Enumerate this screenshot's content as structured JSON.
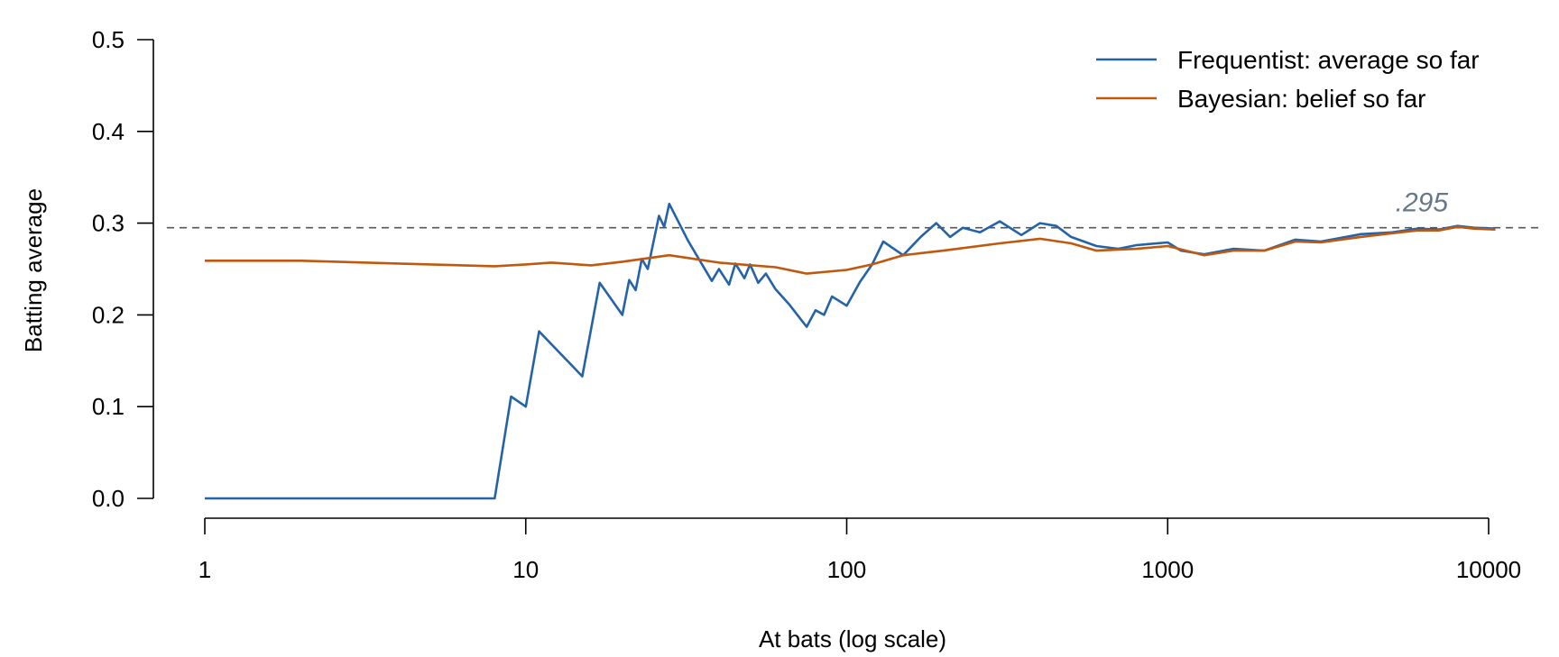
{
  "chart_data": {
    "type": "line",
    "xlabel": "At bats (log scale)",
    "ylabel": "Batting average",
    "xscale": "log",
    "xlim": [
      1,
      10000
    ],
    "ylim": [
      0,
      0.5
    ],
    "x_ticks": [
      1,
      10,
      100,
      1000,
      10000
    ],
    "x_tick_labels": [
      "1",
      "10",
      "100",
      "1000",
      "10000"
    ],
    "y_ticks": [
      0,
      0.1,
      0.2,
      0.3,
      0.4,
      0.5
    ],
    "y_tick_labels": [
      "0.0",
      "0.1",
      "0.2",
      "0.3",
      "0.4",
      "0.5"
    ],
    "grid": false,
    "legend_position": "top-right",
    "reference_line": {
      "y": 0.295,
      "label": ".295",
      "style": "dashed"
    },
    "series": [
      {
        "name": "Frequentist: average so far",
        "color": "#2563a8",
        "points": [
          [
            1,
            0
          ],
          [
            8,
            0
          ],
          [
            9,
            0.111
          ],
          [
            10,
            0.1
          ],
          [
            11,
            0.182
          ],
          [
            15,
            0.133
          ],
          [
            17,
            0.235
          ],
          [
            20,
            0.2
          ],
          [
            21,
            0.238
          ],
          [
            22,
            0.227
          ],
          [
            23,
            0.261
          ],
          [
            24,
            0.25
          ],
          [
            26,
            0.308
          ],
          [
            27,
            0.296
          ],
          [
            28,
            0.321
          ],
          [
            32,
            0.281
          ],
          [
            38,
            0.237
          ],
          [
            40,
            0.25
          ],
          [
            43,
            0.233
          ],
          [
            45,
            0.256
          ],
          [
            48,
            0.24
          ],
          [
            50,
            0.255
          ],
          [
            53,
            0.235
          ],
          [
            56,
            0.245
          ],
          [
            60,
            0.228
          ],
          [
            66,
            0.212
          ],
          [
            75,
            0.187
          ],
          [
            80,
            0.205
          ],
          [
            85,
            0.2
          ],
          [
            90,
            0.22
          ],
          [
            100,
            0.21
          ],
          [
            110,
            0.236
          ],
          [
            120,
            0.255
          ],
          [
            130,
            0.28
          ],
          [
            150,
            0.265
          ],
          [
            170,
            0.285
          ],
          [
            190,
            0.3
          ],
          [
            210,
            0.285
          ],
          [
            230,
            0.295
          ],
          [
            260,
            0.29
          ],
          [
            300,
            0.302
          ],
          [
            350,
            0.287
          ],
          [
            400,
            0.3
          ],
          [
            450,
            0.297
          ],
          [
            500,
            0.285
          ],
          [
            600,
            0.275
          ],
          [
            700,
            0.272
          ],
          [
            800,
            0.276
          ],
          [
            1000,
            0.279
          ],
          [
            1100,
            0.27
          ],
          [
            1300,
            0.266
          ],
          [
            1600,
            0.272
          ],
          [
            2000,
            0.27
          ],
          [
            2500,
            0.282
          ],
          [
            3000,
            0.28
          ],
          [
            4000,
            0.288
          ],
          [
            5000,
            0.29
          ],
          [
            6000,
            0.294
          ],
          [
            7000,
            0.293
          ],
          [
            8000,
            0.297
          ],
          [
            9000,
            0.295
          ],
          [
            10500,
            0.294
          ]
        ]
      },
      {
        "name": "Bayesian: belief so far",
        "color": "#c0580f",
        "points": [
          [
            1,
            0.259
          ],
          [
            2,
            0.259
          ],
          [
            4,
            0.256
          ],
          [
            8,
            0.253
          ],
          [
            10,
            0.255
          ],
          [
            12,
            0.257
          ],
          [
            16,
            0.254
          ],
          [
            20,
            0.258
          ],
          [
            28,
            0.265
          ],
          [
            40,
            0.257
          ],
          [
            60,
            0.252
          ],
          [
            75,
            0.245
          ],
          [
            100,
            0.249
          ],
          [
            120,
            0.255
          ],
          [
            150,
            0.265
          ],
          [
            200,
            0.27
          ],
          [
            300,
            0.278
          ],
          [
            400,
            0.283
          ],
          [
            500,
            0.278
          ],
          [
            600,
            0.27
          ],
          [
            800,
            0.272
          ],
          [
            1000,
            0.275
          ],
          [
            1300,
            0.265
          ],
          [
            1600,
            0.27
          ],
          [
            2000,
            0.27
          ],
          [
            2500,
            0.28
          ],
          [
            3000,
            0.279
          ],
          [
            4000,
            0.285
          ],
          [
            5000,
            0.289
          ],
          [
            6000,
            0.292
          ],
          [
            7000,
            0.292
          ],
          [
            8000,
            0.296
          ],
          [
            9000,
            0.294
          ],
          [
            10500,
            0.293
          ]
        ]
      }
    ]
  }
}
